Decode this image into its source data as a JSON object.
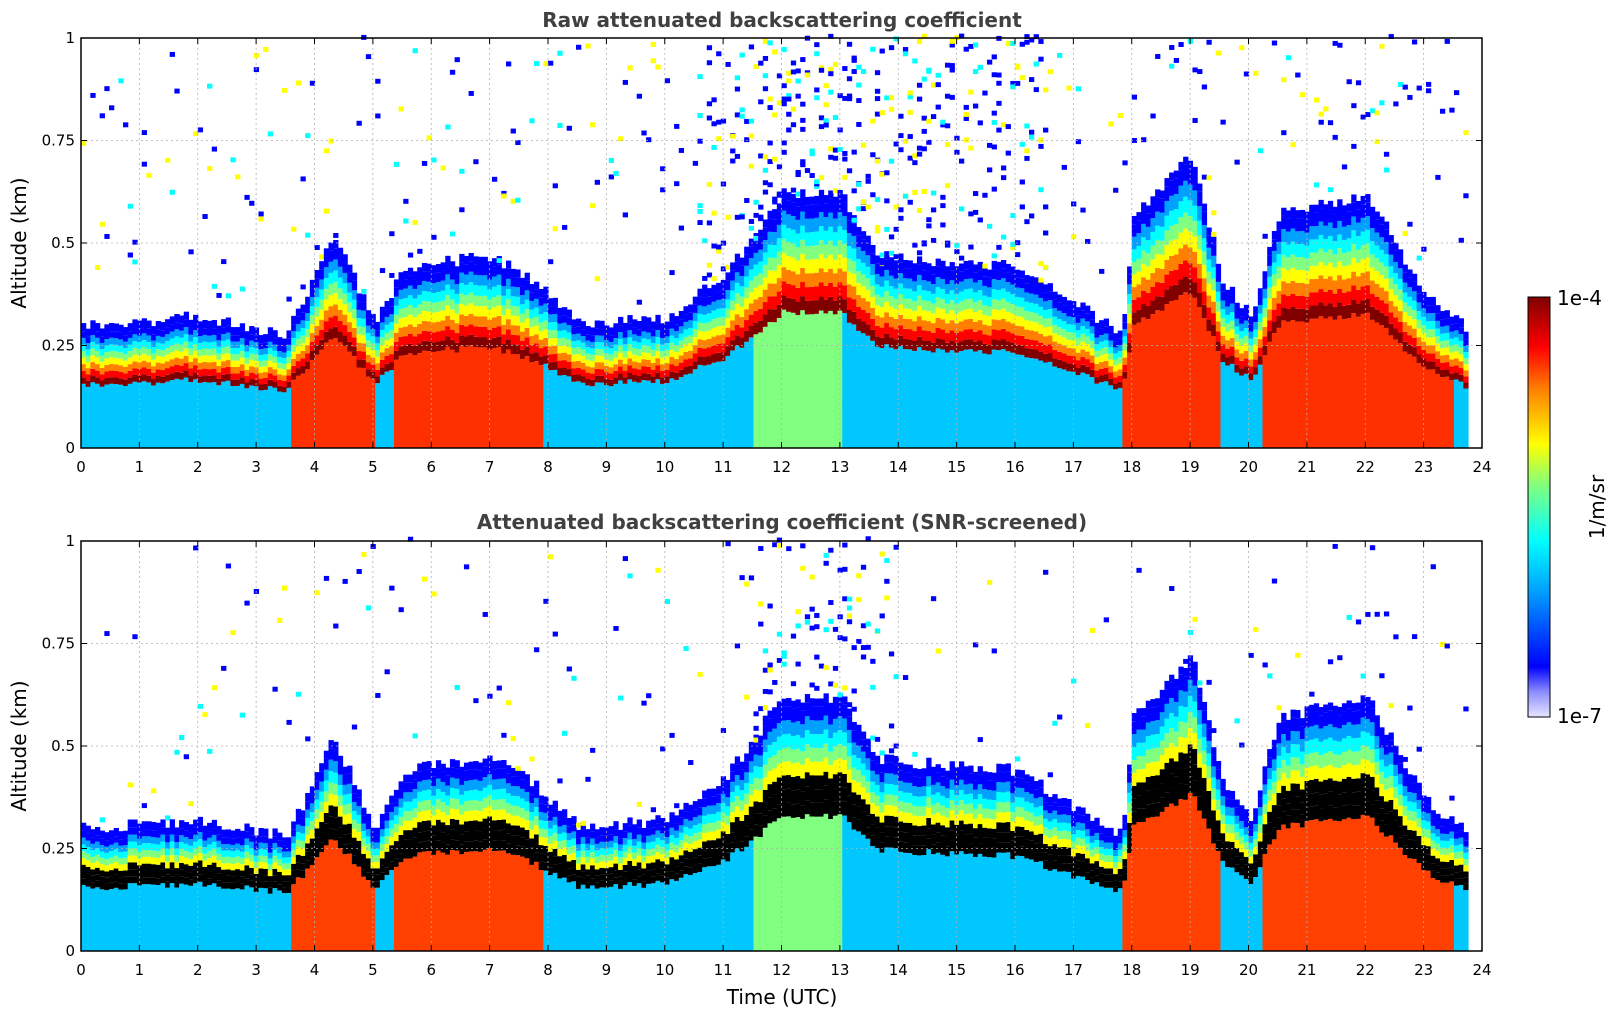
{
  "chart_data": [
    {
      "type": "heatmap",
      "id": "raw",
      "title": "Raw attenuated backscattering coefficient",
      "xlabel": "",
      "ylabel": "Altitude (km)",
      "xlim": [
        0,
        24
      ],
      "ylim": [
        0,
        1
      ],
      "xticks": [
        "0",
        "1",
        "2",
        "3",
        "4",
        "5",
        "6",
        "7",
        "8",
        "9",
        "10",
        "11",
        "12",
        "13",
        "14",
        "15",
        "16",
        "17",
        "18",
        "19",
        "20",
        "21",
        "22",
        "23",
        "24"
      ],
      "yticks": [
        {
          "value": 0,
          "label": "0"
        },
        {
          "value": 0.25,
          "label": "0.25"
        },
        {
          "value": 0.5,
          "label": "0.5"
        },
        {
          "value": 0.75,
          "label": "0.75"
        },
        {
          "value": 1,
          "label": "1"
        }
      ],
      "grid": true,
      "screened": false
    },
    {
      "type": "heatmap",
      "id": "screened",
      "title": "Attenuated backscattering coefficient (SNR-screened)",
      "xlabel": "Time (UTC)",
      "ylabel": "Altitude (km)",
      "xlim": [
        0,
        24
      ],
      "ylim": [
        0,
        1
      ],
      "xticks": [
        "0",
        "1",
        "2",
        "3",
        "4",
        "5",
        "6",
        "7",
        "8",
        "9",
        "10",
        "11",
        "12",
        "13",
        "14",
        "15",
        "16",
        "17",
        "18",
        "19",
        "20",
        "21",
        "22",
        "23",
        "24"
      ],
      "yticks": [
        {
          "value": 0,
          "label": "0"
        },
        {
          "value": 0.25,
          "label": "0.25"
        },
        {
          "value": 0.5,
          "label": "0.5"
        },
        {
          "value": 0.75,
          "label": "0.75"
        },
        {
          "value": 1,
          "label": "1"
        }
      ],
      "grid": true,
      "screened": true
    }
  ],
  "layer_profile": {
    "description": "Approximate boundary-layer top altitude (km) vs time (UTC hours)",
    "time": [
      0,
      2,
      3,
      3.5,
      4.3,
      5,
      5.5,
      7,
      7.8,
      8.5,
      10,
      11,
      12,
      13,
      13.6,
      14,
      15.5,
      16,
      17.8,
      18,
      19,
      19.5,
      20,
      20.5,
      22,
      23,
      23.7
    ],
    "top": [
      0.28,
      0.3,
      0.27,
      0.26,
      0.5,
      0.28,
      0.42,
      0.45,
      0.38,
      0.28,
      0.3,
      0.4,
      0.6,
      0.6,
      0.45,
      0.44,
      0.43,
      0.42,
      0.26,
      0.55,
      0.7,
      0.4,
      0.3,
      0.55,
      0.6,
      0.35,
      0.27
    ]
  },
  "colorbar": {
    "label": "1/m/sr",
    "max_label": "1e-4",
    "min_label": "1e-7",
    "scale": "log",
    "range": [
      1e-07,
      0.0001
    ],
    "colors": [
      "#e6e6ff",
      "#0000ff",
      "#00a0ff",
      "#00ffff",
      "#80ff80",
      "#ffff00",
      "#ff8000",
      "#ff0000",
      "#800000"
    ]
  }
}
